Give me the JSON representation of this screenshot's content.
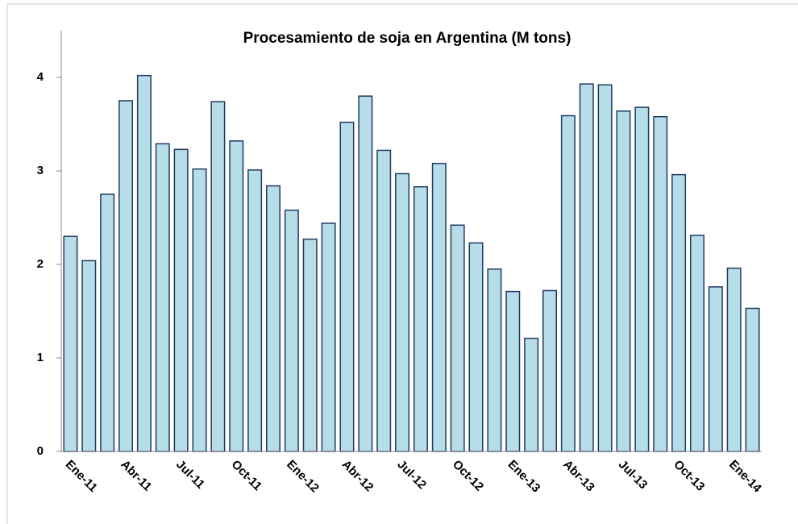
{
  "chart_data": {
    "type": "bar",
    "title": "Procesamiento de soja en Argentina (M tons)",
    "categories": [
      "Ene-11",
      null,
      null,
      "Abr-11",
      null,
      null,
      "Jul-11",
      null,
      null,
      "Oct-11",
      null,
      null,
      "Ene-12",
      null,
      null,
      "Abr-12",
      null,
      null,
      "Jul-12",
      null,
      null,
      "Oct-12",
      null,
      null,
      "Ene-13",
      null,
      null,
      "Abr-13",
      null,
      null,
      "Jul-13",
      null,
      null,
      "Oct-13",
      null,
      null,
      "Ene-14",
      null
    ],
    "values": [
      2.3,
      2.04,
      2.75,
      3.75,
      4.02,
      3.29,
      3.23,
      3.02,
      3.74,
      3.32,
      3.01,
      2.84,
      2.58,
      2.27,
      2.44,
      3.52,
      3.8,
      3.22,
      2.97,
      2.83,
      3.08,
      2.42,
      2.23,
      1.95,
      1.71,
      1.21,
      1.72,
      3.59,
      3.93,
      3.92,
      3.64,
      3.68,
      3.58,
      2.96,
      2.31,
      1.76,
      1.96,
      1.53
    ],
    "color": "#b7dde8",
    "edge_color": "#1f3a63",
    "ylim": [
      0,
      4.5
    ],
    "yticks": [
      0,
      1,
      2,
      3,
      4
    ],
    "grid": false
  }
}
